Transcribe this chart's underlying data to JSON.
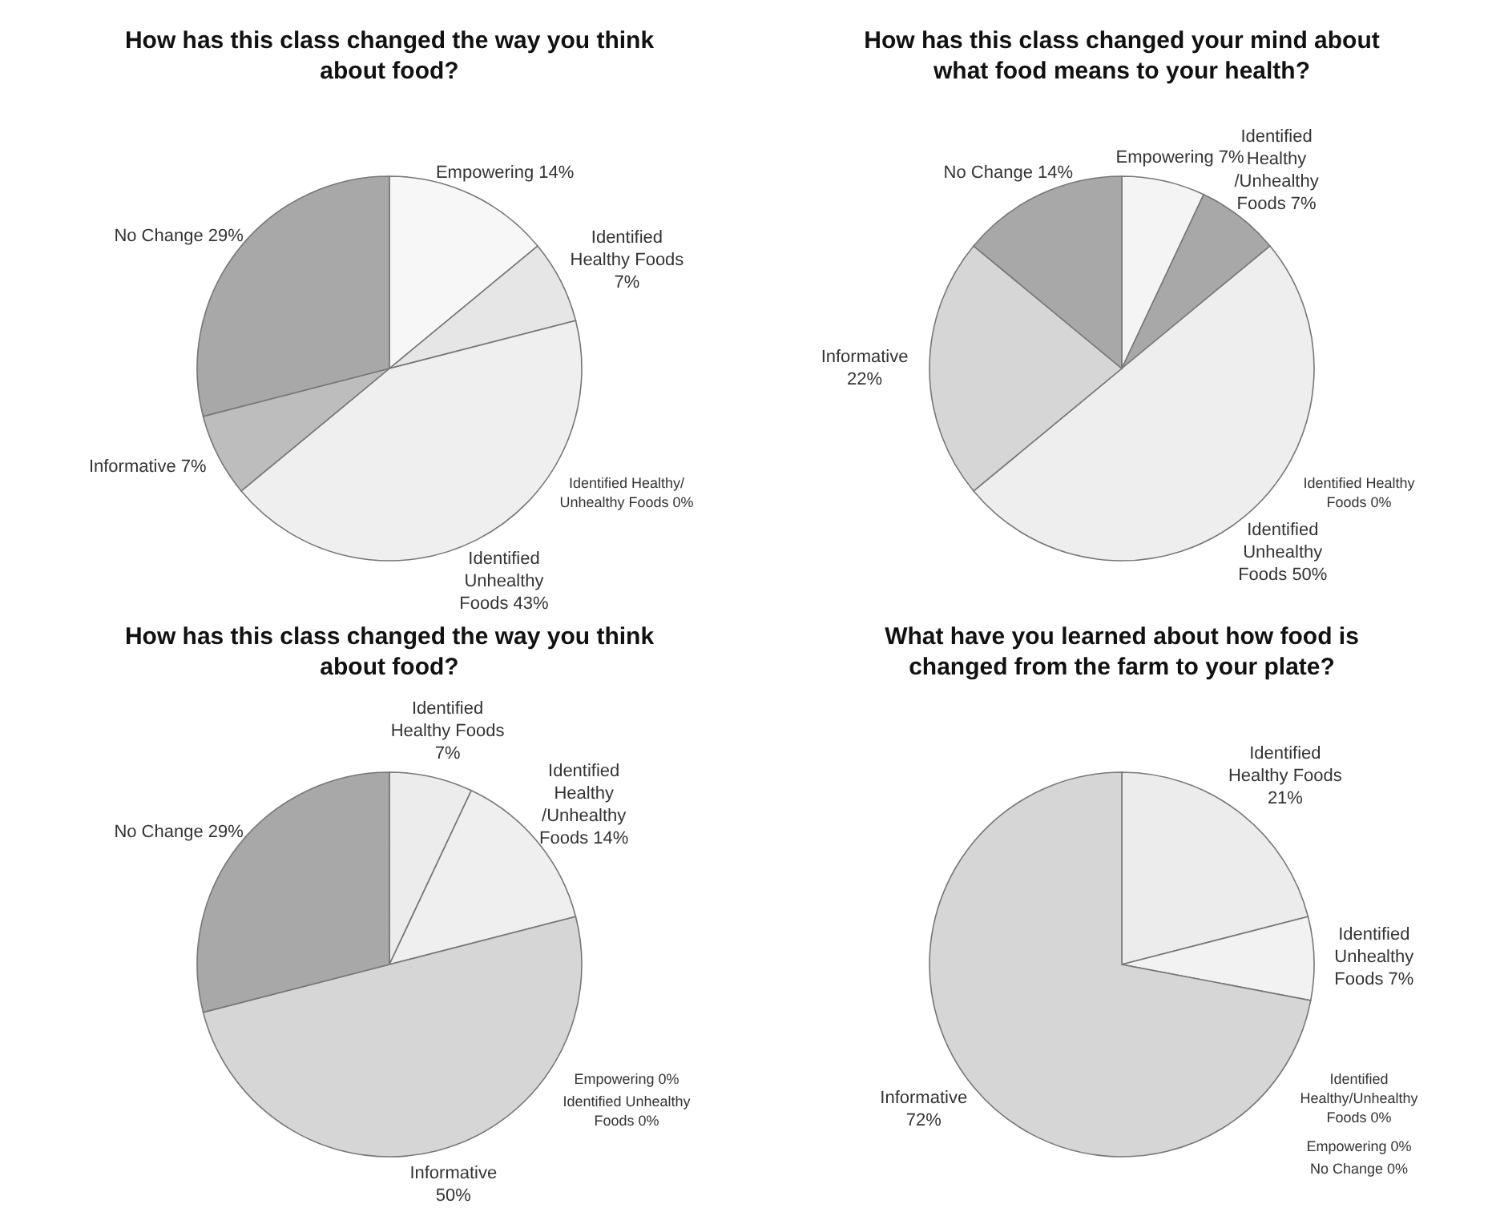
{
  "chart_data": [
    {
      "type": "pie",
      "title": "How has this class changed the way you think about food?",
      "categories": [
        "Empowering",
        "Identified Healthy Foods",
        "Identified Unhealthy Foods",
        "Identified Healthy/ Unhealthy Foods",
        "Informative",
        "No Change"
      ],
      "values": [
        14,
        7,
        43,
        0,
        7,
        29
      ],
      "value_labels": [
        "14%",
        "7%",
        "43%",
        "0%",
        "7%",
        "29%"
      ],
      "colors": [
        "#f7f7f7",
        "#e6e6e6",
        "#efefef",
        null,
        "#bdbdbd",
        "#a8a8a8"
      ]
    },
    {
      "type": "pie",
      "title": "How has this class changed your mind about what food means to your health?",
      "categories": [
        "Empowering",
        "Identified Healthy /Unhealthy Foods",
        "Identified Unhealthy Foods",
        "Identified Healthy Foods",
        "Informative",
        "No Change"
      ],
      "values": [
        7,
        7,
        50,
        0,
        22,
        14
      ],
      "value_labels": [
        "7%",
        "7%",
        "50%",
        "0%",
        "22%",
        "14%"
      ],
      "colors": [
        "#f4f4f4",
        "#a8a8a8",
        "#eeeeee",
        null,
        "#d6d6d6",
        "#a8a8a8"
      ]
    },
    {
      "type": "pie",
      "title": "How has this class changed the way you think about food?",
      "categories": [
        "Identified Healthy Foods",
        "Identified Healthy /Unhealthy Foods",
        "Empowering",
        "Identified Unhealthy Foods",
        "Informative",
        "No Change"
      ],
      "values": [
        7,
        14,
        0,
        0,
        50,
        29
      ],
      "value_labels": [
        "7%",
        "14%",
        "0%",
        "0%",
        "50%",
        "29%"
      ],
      "colors": [
        "#ececec",
        "#efefef",
        null,
        null,
        "#d6d6d6",
        "#a8a8a8"
      ]
    },
    {
      "type": "pie",
      "title": "What have you learned about how food is changed from the farm to your plate?",
      "categories": [
        "Identified Healthy Foods",
        "Identified Unhealthy Foods",
        "Identified Healthy/Unhealthy Foods",
        "Empowering",
        "No Change",
        "Informative"
      ],
      "values": [
        21,
        7,
        0,
        0,
        0,
        72
      ],
      "value_labels": [
        "21%",
        "7%",
        "0%",
        "0%",
        "0%",
        "72%"
      ],
      "colors": [
        "#ececec",
        "#f2f2f2",
        null,
        null,
        null,
        "#d6d6d6"
      ]
    }
  ]
}
